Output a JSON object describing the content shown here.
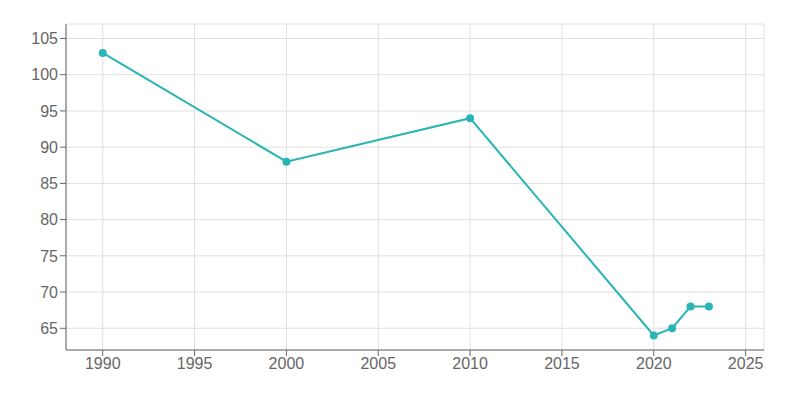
{
  "chart_data": {
    "type": "line",
    "x": [
      1990,
      2000,
      2010,
      2020,
      2021,
      2022,
      2023
    ],
    "values": [
      103,
      88,
      94,
      64,
      65,
      68,
      68
    ],
    "color": "#2ab5b5",
    "marker": "circle",
    "xlim": [
      1988,
      2026
    ],
    "ylim": [
      62,
      107
    ],
    "xticks": [
      1990,
      1995,
      2000,
      2005,
      2010,
      2015,
      2020,
      2025
    ],
    "yticks": [
      65,
      70,
      75,
      80,
      85,
      90,
      95,
      100,
      105
    ],
    "grid": true
  }
}
